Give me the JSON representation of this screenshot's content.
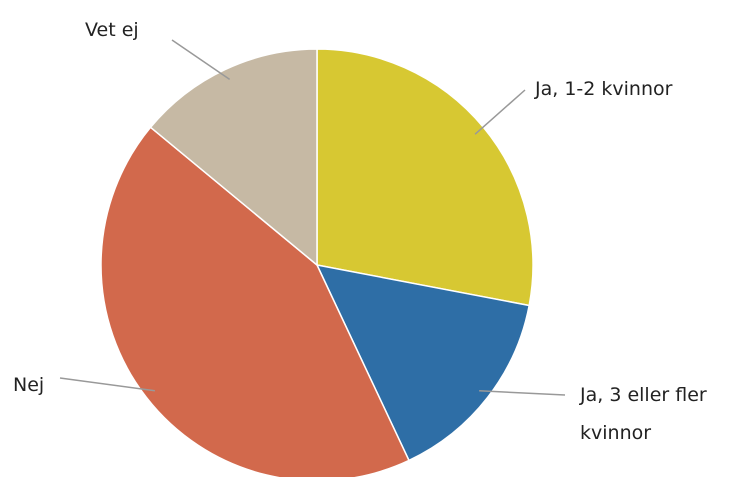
{
  "chart_data": {
    "type": "pie",
    "categories": [
      "Ja, 1-2 kvinnor",
      "Ja, 3 eller fler kvinnor",
      "Nej",
      "Vet ej"
    ],
    "values": [
      28,
      15,
      43,
      14
    ],
    "colors": [
      "#d7c832",
      "#2e6ea6",
      "#d2694c",
      "#c6b9a4"
    ]
  }
}
